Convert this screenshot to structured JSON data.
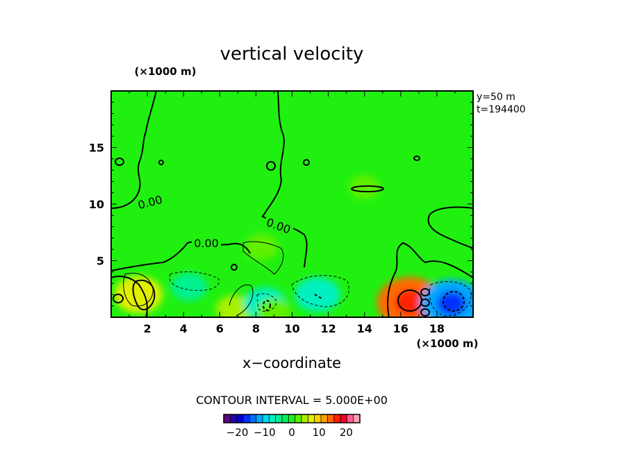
{
  "chart_data": {
    "type": "heatmap",
    "title": "vertical velocity",
    "xlabel": "x−coordinate",
    "x_unit": "(×1000 m)",
    "y_unit": "(×1000 m)",
    "xlim": [
      0,
      20
    ],
    "ylim": [
      0,
      20
    ],
    "x_ticks": [
      2,
      4,
      6,
      8,
      10,
      12,
      14,
      16,
      18
    ],
    "y_ticks": [
      5,
      10,
      15
    ],
    "annotations": [
      "y=50 m",
      "t=194400"
    ],
    "contour_labels": [
      "0.00",
      "0.00",
      "0.00"
    ],
    "contour_interval_text": "CONTOUR INTERVAL = 5.000E+00",
    "contour_interval": 5,
    "colorbar": {
      "range": [
        -25,
        25
      ],
      "ticks": [
        -20,
        -10,
        0,
        10,
        20
      ],
      "tick_labels": [
        "−20",
        "−10",
        "0",
        "10",
        "20"
      ],
      "colors": [
        "#5a0a78",
        "#2a00b0",
        "#0000e0",
        "#0030ff",
        "#0070ff",
        "#00a8ff",
        "#00d8f0",
        "#00f0c0",
        "#00f090",
        "#00f060",
        "#20f020",
        "#60f000",
        "#a8f000",
        "#e0f000",
        "#ffd000",
        "#ffa000",
        "#ff6a00",
        "#ff2000",
        "#f00030",
        "#ff6090",
        "#ffa0b0"
      ]
    },
    "features": [
      {
        "x": 1.5,
        "y": 2.0,
        "value": 8
      },
      {
        "x": 4.3,
        "y": 2.7,
        "value": -4
      },
      {
        "x": 6.8,
        "y": 0.7,
        "value": 4
      },
      {
        "x": 8.5,
        "y": 1.2,
        "value": -6
      },
      {
        "x": 11.4,
        "y": 2.0,
        "value": -7
      },
      {
        "x": 16.5,
        "y": 1.3,
        "value": 14
      },
      {
        "x": 18.8,
        "y": 1.2,
        "value": -13
      },
      {
        "x": 8.3,
        "y": 6.2,
        "value": 3
      },
      {
        "x": 14.0,
        "y": 11.5,
        "value": 2
      },
      {
        "x": 9.0,
        "y": 0.5,
        "value": 3
      }
    ]
  }
}
